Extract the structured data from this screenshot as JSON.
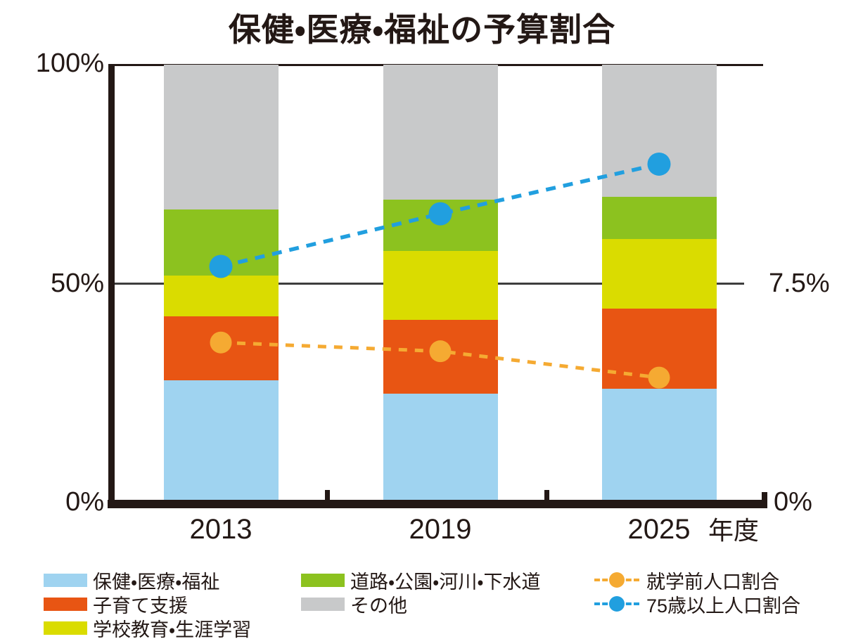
{
  "title": "保健・医療・福祉の予算割合",
  "axes": {
    "left": {
      "tick_100": "100%",
      "tick_50": "50%",
      "tick_0": "0%"
    },
    "right": {
      "tick_mid": "7.5%",
      "tick_0": "0%"
    },
    "x_unit": "年度"
  },
  "chart_data": {
    "type": "bar",
    "subtype": "stacked-bars-with-dashed-line-overlay",
    "title": "保健・医療・福祉の予算割合",
    "categories": [
      "2013",
      "2019",
      "2025"
    ],
    "x_unit_label": "年度",
    "left_axis": {
      "label_format": "percent",
      "min": 0,
      "max": 100,
      "ticks": [
        0,
        50,
        100
      ]
    },
    "right_axis": {
      "label_format": "percent",
      "min": 0,
      "max": 15,
      "mid_label_value": 7.5,
      "grid": "50-percent line shared with left axis"
    },
    "series": [
      {
        "name": "保健・医療・福祉",
        "color_key": "blue",
        "values": [
          28.0,
          25.0,
          26.1
        ]
      },
      {
        "name": "子育て支援",
        "color_key": "orange",
        "values": [
          14.6,
          16.8,
          18.3
        ]
      },
      {
        "name": "学校教育・生涯学習",
        "color_key": "yellow",
        "values": [
          9.3,
          15.7,
          15.9
        ]
      },
      {
        "name": "道路・公園・河川・下水道",
        "color_key": "green",
        "values": [
          15.1,
          11.7,
          9.6
        ]
      },
      {
        "name": "その他",
        "color_key": "gray",
        "values": [
          33.0,
          30.8,
          30.1
        ]
      }
    ],
    "line_series": [
      {
        "name": "就学前人口割合",
        "color_key": "line_orange",
        "axis": "right",
        "values": [
          5.5,
          5.2,
          4.3
        ]
      },
      {
        "name": "75歳以上人口割合",
        "color_key": "line_blue",
        "axis": "right",
        "values": [
          8.1,
          9.9,
          11.6
        ]
      }
    ],
    "legend_position": "bottom"
  },
  "legend": {
    "items": {
      "blue": "保健・医療・福祉",
      "orange": "子育て支援",
      "yellow": "学校教育・生涯学習",
      "green": "道路・公園・河川・下水道",
      "gray": "その他",
      "line_orange": "就学前人口割合",
      "line_blue": "75歳以上人口割合"
    }
  },
  "colors": {
    "blue": "#9FD3F0",
    "orange": "#E85513",
    "yellow": "#DADC00",
    "green": "#8CC21F",
    "gray": "#C8C9CA",
    "line_orange": "#F5AA32",
    "line_blue": "#219FDF",
    "ink": "#231815"
  }
}
